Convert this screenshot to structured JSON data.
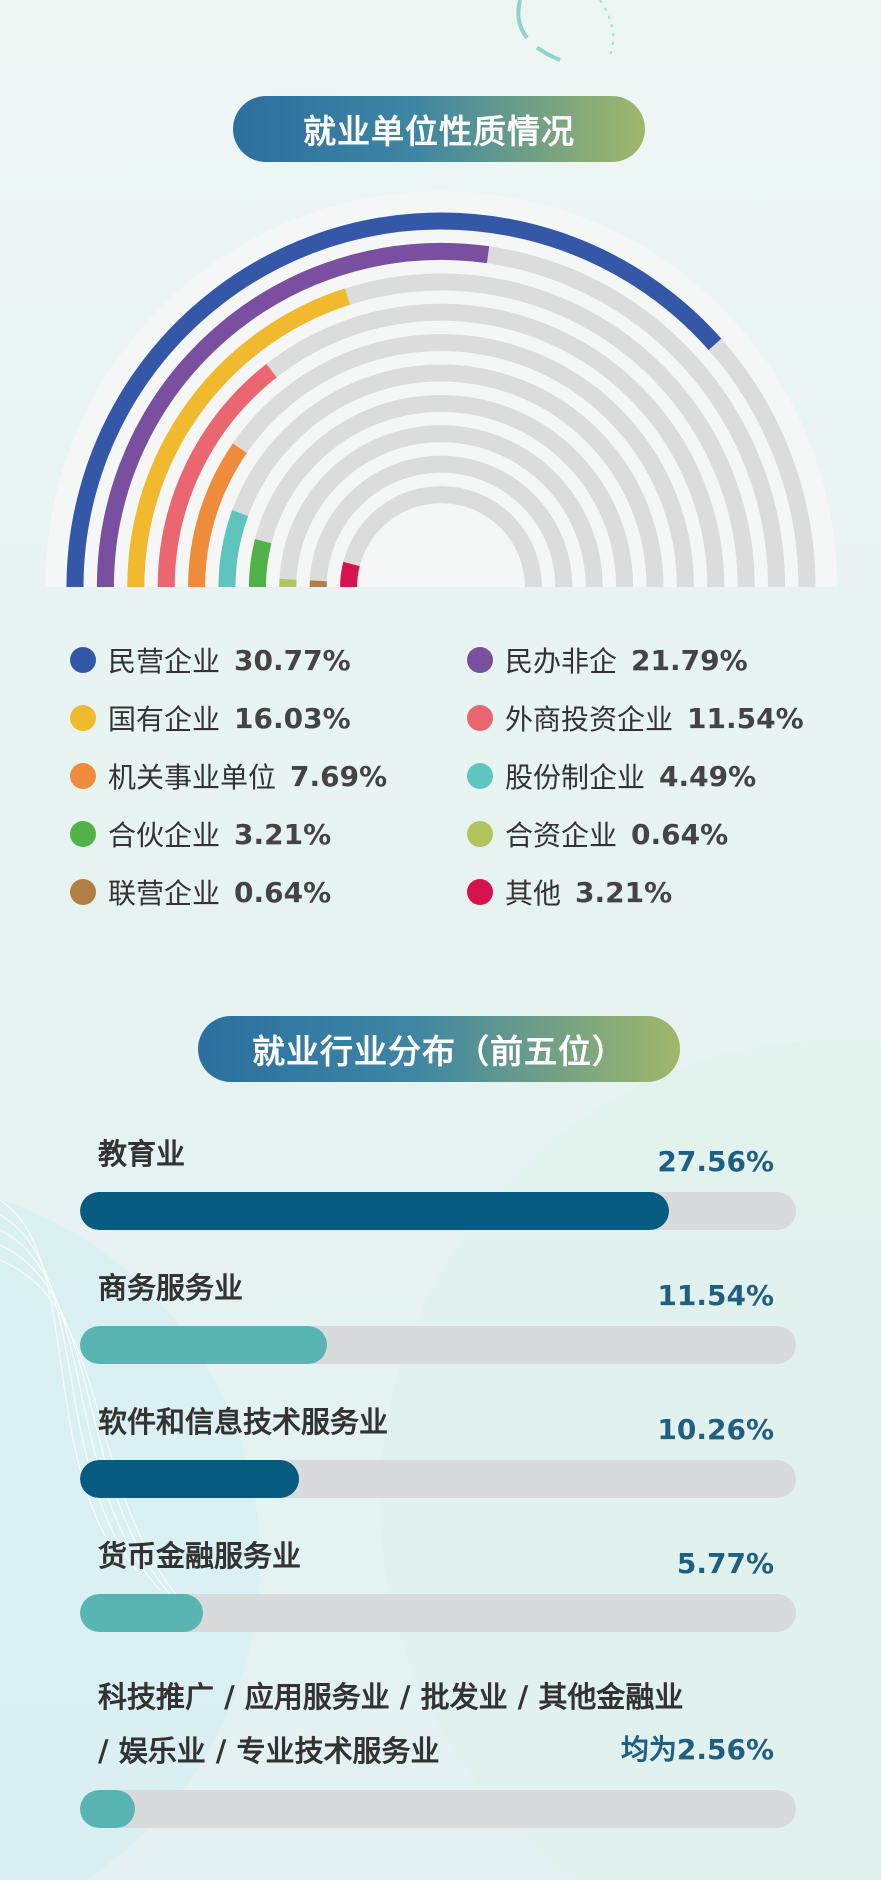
{
  "chart_data": [
    {
      "type": "pie",
      "title": "就业单位性质情况",
      "categories": [
        "民营企业",
        "民办非企",
        "国有企业",
        "外商投资企业",
        "机关事业单位",
        "股份制企业",
        "合伙企业",
        "合资企业",
        "联营企业",
        "其他"
      ],
      "values": [
        30.77,
        21.79,
        16.03,
        11.54,
        7.69,
        4.49,
        3.21,
        0.64,
        0.64,
        3.21
      ],
      "value_labels": [
        "30.77%",
        "21.79%",
        "16.03%",
        "11.54%",
        "7.69%",
        "4.49%",
        "3.21%",
        "0.64%",
        "0.64%",
        "3.21%"
      ],
      "colors": [
        "#3457a8",
        "#7a4f9f",
        "#f0b92e",
        "#ea6670",
        "#ef8c3c",
        "#5ec4bd",
        "#52b24a",
        "#b3c45e",
        "#b07f44",
        "#d6134e"
      ],
      "track_color": "#dcdcdc",
      "legend": "bottom"
    },
    {
      "type": "bar",
      "title": "就业行业分布（前五位）",
      "categories": [
        "教育业",
        "商务服务业",
        "软件和信息技术服务业",
        "货币金融服务业",
        "科技推广 / 应用服务业 / 批发业 / 其他金融业 / 娱乐业 / 专业技术服务业"
      ],
      "values": [
        27.56,
        11.54,
        10.26,
        5.77,
        2.56
      ],
      "value_labels": [
        "27.56%",
        "11.54%",
        "10.26%",
        "5.77%",
        "均为2.56%"
      ],
      "colors": [
        "#075a80",
        "#58b5b2",
        "#075a80",
        "#58b5b2",
        "#58b5b2"
      ],
      "orientation": "horizontal"
    }
  ],
  "industry_last_lines": [
    "科技推广 / 应用服务业 / 批发业 / 其他金融业",
    "/ 娱乐业 / 专业技术服务业"
  ]
}
